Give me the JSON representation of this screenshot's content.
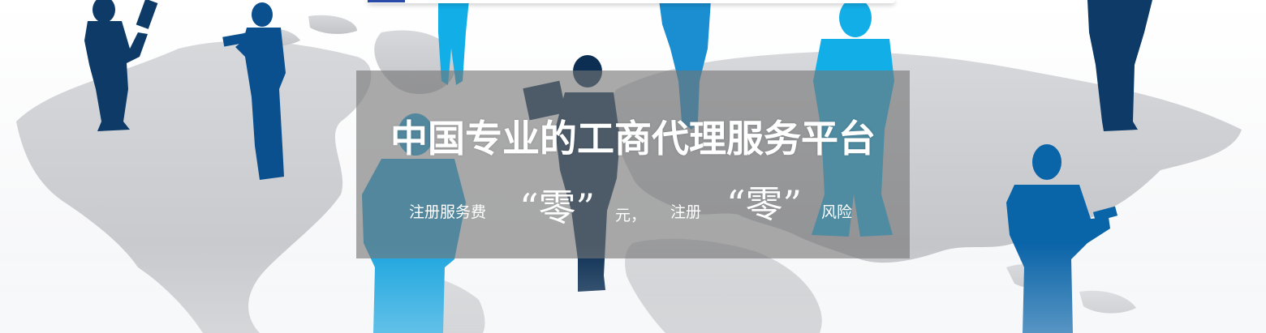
{
  "banner": {
    "headline": "中国专业的工商代理服务平台",
    "sub_text_1": "注册服务费",
    "zero_1": "“零”",
    "sub_text_2": "元，",
    "sub_text_3": "注册",
    "zero_2": "“零”",
    "sub_text_4": "风险"
  },
  "colors": {
    "overlay": "#767676",
    "text": "#ffffff",
    "map": "#c9cbcf",
    "figure_dark": "#0d3a66",
    "figure_mid": "#0a64a8",
    "figure_light": "#12aee8"
  },
  "icons": {
    "background": "world-map-icon",
    "people": "business-person-icon"
  }
}
